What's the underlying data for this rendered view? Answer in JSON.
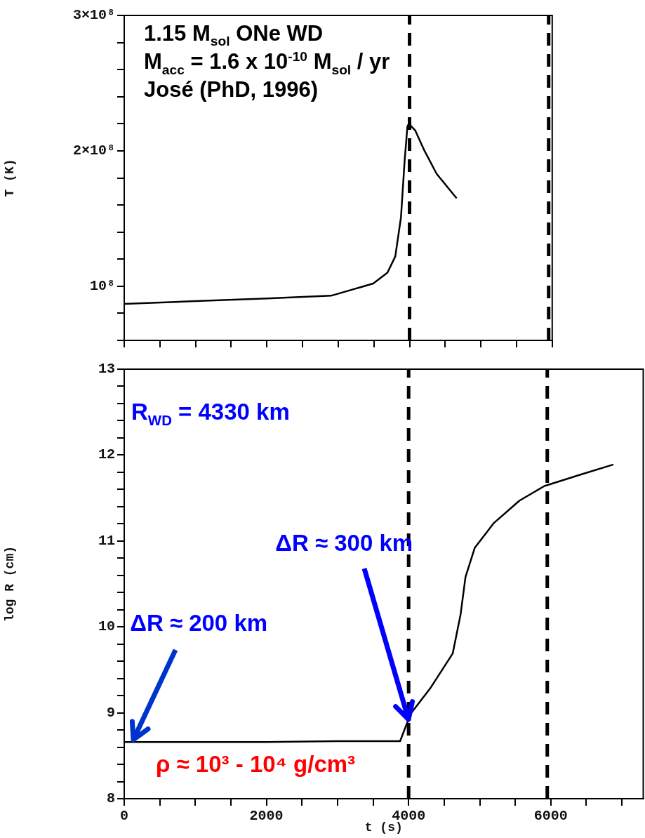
{
  "chart_data": [
    {
      "type": "line",
      "ylabel": "T (K)",
      "xlim": [
        0,
        6000
      ],
      "ylim": [
        60000000,
        300000000
      ],
      "xticks": [
        0,
        500,
        1000,
        1500,
        2000,
        2500,
        3000,
        3500,
        4000,
        4500,
        5000,
        5500,
        6000
      ],
      "yticks": [
        {
          "value": 60000000,
          "label": null
        },
        {
          "value": 80000000,
          "label": null
        },
        {
          "value": 100000000,
          "label": "10⁸"
        },
        {
          "value": 120000000,
          "label": null
        },
        {
          "value": 140000000,
          "label": null
        },
        {
          "value": 160000000,
          "label": null
        },
        {
          "value": 180000000,
          "label": null
        },
        {
          "value": 200000000,
          "label": "2×10⁸"
        },
        {
          "value": 220000000,
          "label": null
        },
        {
          "value": 240000000,
          "label": null
        },
        {
          "value": 260000000,
          "label": null
        },
        {
          "value": 280000000,
          "label": null
        },
        {
          "value": 300000000,
          "label": "3×10⁸"
        }
      ],
      "tick_labels": "y",
      "marker": "none",
      "grid": false,
      "series": [
        {
          "color": "#000000",
          "x": [
            0,
            1000,
            2000,
            2900,
            3490,
            3690,
            3800,
            3880,
            3930,
            3970,
            3990,
            4080,
            4210,
            4380,
            4660
          ],
          "values": [
            87000000,
            89000000,
            91000000,
            93000000,
            102000000,
            110000000,
            122000000,
            151000000,
            192000000,
            218000000,
            220000000,
            215000000,
            200000000,
            183000000,
            165000000
          ]
        }
      ],
      "ref_lines": [
        {
          "axis": "x",
          "value": 4000,
          "color": "#000000",
          "line_style": "dashed"
        },
        {
          "axis": "x",
          "value": 5950,
          "color": "#000000",
          "line_style": "dashed"
        }
      ],
      "annotations": [
        "1.15 M$_{sol}$ ONe WD",
        "M$_{acc}$ = 1.6 x 10$^{-10}$ M$_{sol}$ / yr",
        "José (PhD, 1996)"
      ]
    },
    {
      "type": "line",
      "xlabel": "t (s)",
      "ylabel": "log R (cm)",
      "xlim": [
        0,
        7300
      ],
      "ylim": [
        8,
        13
      ],
      "xticks": [
        0,
        {
          "value": 500,
          "label": null
        },
        {
          "value": 1000,
          "label": null
        },
        {
          "value": 1500,
          "label": null
        },
        2000,
        {
          "value": 2500,
          "label": null
        },
        {
          "value": 3000,
          "label": null
        },
        {
          "value": 3500,
          "label": null
        },
        4000,
        {
          "value": 4500,
          "label": null
        },
        {
          "value": 5000,
          "label": null
        },
        {
          "value": 5500,
          "label": null
        },
        6000,
        {
          "value": 6500,
          "label": null
        },
        {
          "value": 7000,
          "label": null
        }
      ],
      "yticks": [
        8,
        {
          "value": 8.2,
          "label": null
        },
        {
          "value": 8.4,
          "label": null
        },
        {
          "value": 8.6,
          "label": null
        },
        {
          "value": 8.8,
          "label": null
        },
        9,
        {
          "value": 9.2,
          "label": null
        },
        {
          "value": 9.4,
          "label": null
        },
        {
          "value": 9.6,
          "label": null
        },
        {
          "value": 9.8,
          "label": null
        },
        10,
        {
          "value": 10.2,
          "label": null
        },
        {
          "value": 10.4,
          "label": null
        },
        {
          "value": 10.6,
          "label": null
        },
        {
          "value": 10.8,
          "label": null
        },
        11,
        {
          "value": 11.2,
          "label": null
        },
        {
          "value": 11.4,
          "label": null
        },
        {
          "value": 11.6,
          "label": null
        },
        {
          "value": 11.8,
          "label": null
        },
        12,
        {
          "value": 12.2,
          "label": null
        },
        {
          "value": 12.4,
          "label": null
        },
        {
          "value": 12.6,
          "label": null
        },
        {
          "value": 12.8,
          "label": null
        },
        13
      ],
      "marker": "none",
      "grid": false,
      "series": [
        {
          "color": "#000000",
          "x": [
            0,
            1000,
            2000,
            3000,
            3880,
            4030,
            4300,
            4620,
            4730,
            4800,
            4930,
            5200,
            5560,
            5910,
            6410,
            6880
          ],
          "values": [
            8.66,
            8.66,
            8.66,
            8.67,
            8.67,
            8.99,
            9.28,
            9.69,
            10.14,
            10.58,
            10.92,
            11.21,
            11.47,
            11.64,
            11.77,
            11.89
          ]
        }
      ],
      "ref_lines": [
        {
          "axis": "x",
          "value": 4000,
          "color": "#000000",
          "line_style": "dashed"
        },
        {
          "axis": "x",
          "value": 5950,
          "color": "#000000",
          "line_style": "dashed"
        }
      ],
      "annotations": [
        "R$_{WD}$ = 4330 km",
        {
          "text": "ΔR ≈ 300 km",
          "x": 4000,
          "y": 8.92
        },
        {
          "text": "ΔR ≈ 200 km",
          "x": 130,
          "y": 8.66
        },
        "ρ ≈ 10³ - 10⁴ g/cm³"
      ]
    }
  ]
}
